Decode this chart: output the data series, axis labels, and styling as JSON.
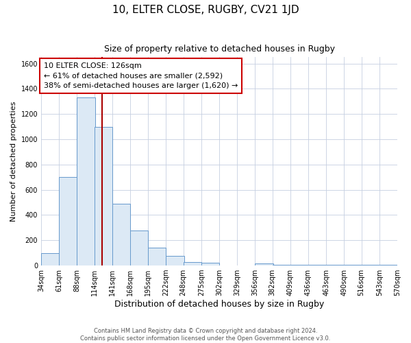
{
  "title": "10, ELTER CLOSE, RUGBY, CV21 1JD",
  "subtitle": "Size of property relative to detached houses in Rugby",
  "xlabel": "Distribution of detached houses by size in Rugby",
  "ylabel": "Number of detached properties",
  "bar_facecolor": "#dce9f5",
  "bar_edge_color": "#6699cc",
  "bin_edges": [
    34,
    61,
    88,
    114,
    141,
    168,
    195,
    222,
    248,
    275,
    302,
    329,
    356,
    382,
    409,
    436,
    463,
    490,
    516,
    543,
    570
  ],
  "bar_heights": [
    100,
    700,
    1330,
    1100,
    490,
    280,
    140,
    75,
    30,
    20,
    0,
    0,
    15,
    5,
    5,
    5,
    5,
    5,
    5,
    5
  ],
  "property_size": 126,
  "vline_color": "#aa0000",
  "annotation_box_edge": "#cc0000",
  "annotation_line1": "10 ELTER CLOSE: 126sqm",
  "annotation_line2": "← 61% of detached houses are smaller (2,592)",
  "annotation_line3": "38% of semi-detached houses are larger (1,620) →",
  "ylim": [
    0,
    1650
  ],
  "yticks": [
    0,
    200,
    400,
    600,
    800,
    1000,
    1200,
    1400,
    1600
  ],
  "background_color": "#ffffff",
  "grid_color": "#c5cfe0",
  "title_fontsize": 11,
  "subtitle_fontsize": 9,
  "xlabel_fontsize": 9,
  "ylabel_fontsize": 8,
  "tick_fontsize": 7,
  "annot_fontsize": 8,
  "footer_text": "Contains HM Land Registry data © Crown copyright and database right 2024.\nContains public sector information licensed under the Open Government Licence v3.0."
}
